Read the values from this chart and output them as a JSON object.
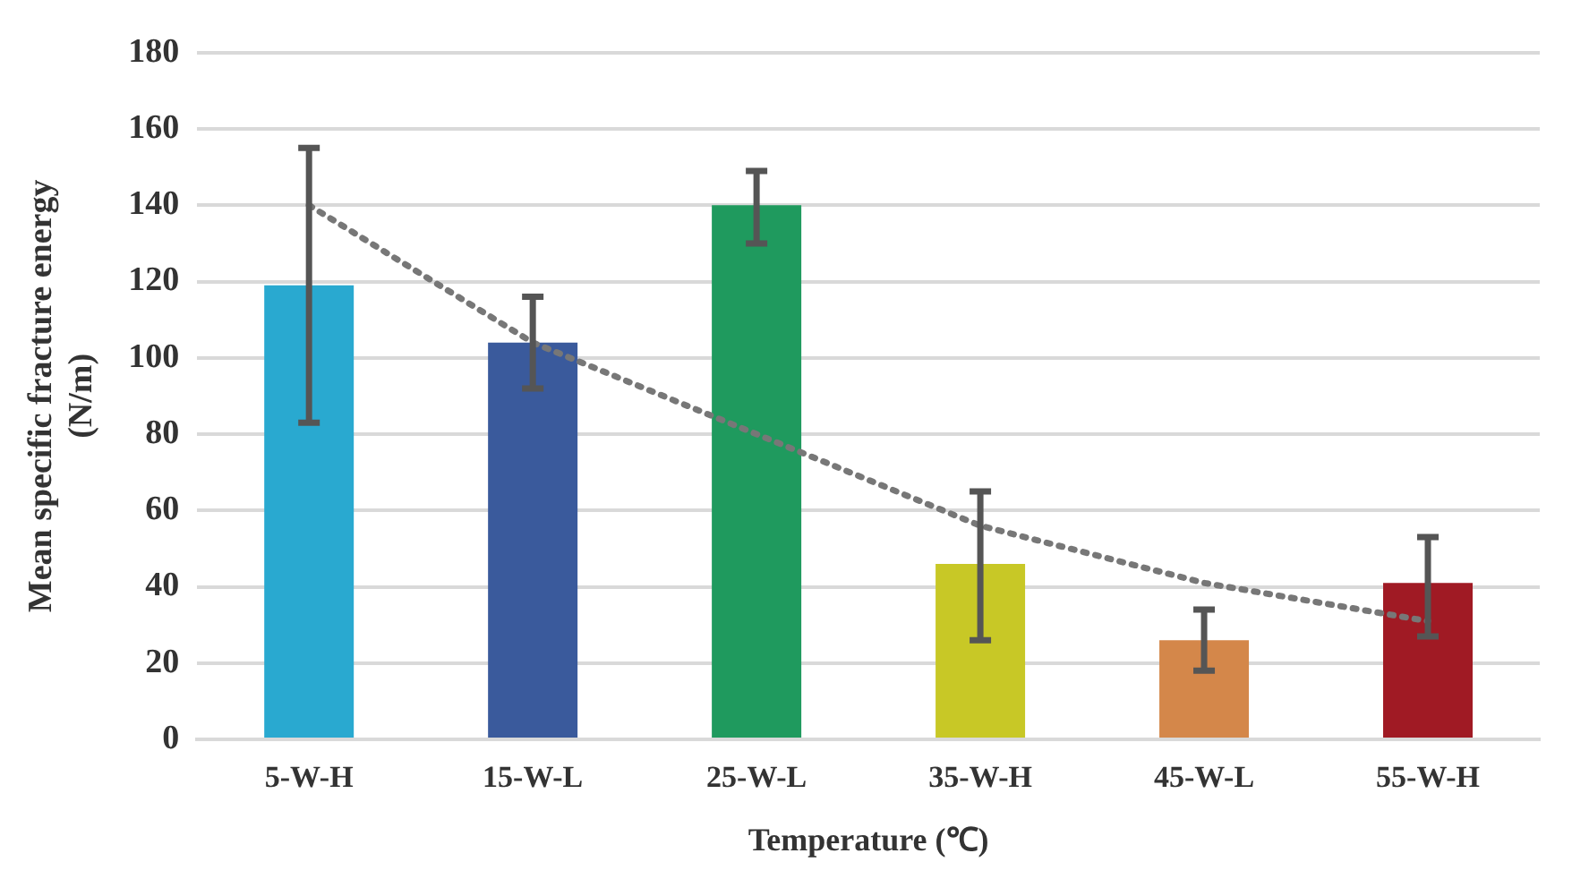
{
  "chart_data": {
    "type": "bar",
    "xlabel": "Temperature (℃)",
    "ylabel": "Mean specific fracture energy (N/m)",
    "categories": [
      "5-W-H",
      "15-W-L",
      "25-W-L",
      "35-W-H",
      "45-W-L",
      "55-W-H"
    ],
    "series": [
      {
        "colors": [
          "#29a9d0",
          "#3a5a9c",
          "#1f9a5e",
          "#c8c826",
          "#d4874a",
          "#a01a24"
        ],
        "values": [
          119,
          104,
          140,
          46,
          26,
          41
        ],
        "errors": [
          [
            83,
            155
          ],
          [
            92,
            116
          ],
          [
            130,
            149
          ],
          [
            26,
            65
          ],
          [
            18,
            34
          ],
          [
            27,
            53
          ]
        ]
      },
      {
        "type": "line",
        "color": "#777777",
        "line_style": "dotted",
        "marker": "none",
        "x": [
          "5-W-H",
          "15-W-L",
          "25-W-L",
          "35-W-H",
          "45-W-L",
          "55-W-H"
        ],
        "values": [
          140,
          104,
          80,
          56,
          41,
          31
        ]
      }
    ],
    "ylim": [
      0,
      180
    ],
    "yticks": [
      0,
      20,
      40,
      60,
      80,
      100,
      120,
      140,
      160,
      180
    ],
    "grid": "y",
    "legend": false
  }
}
